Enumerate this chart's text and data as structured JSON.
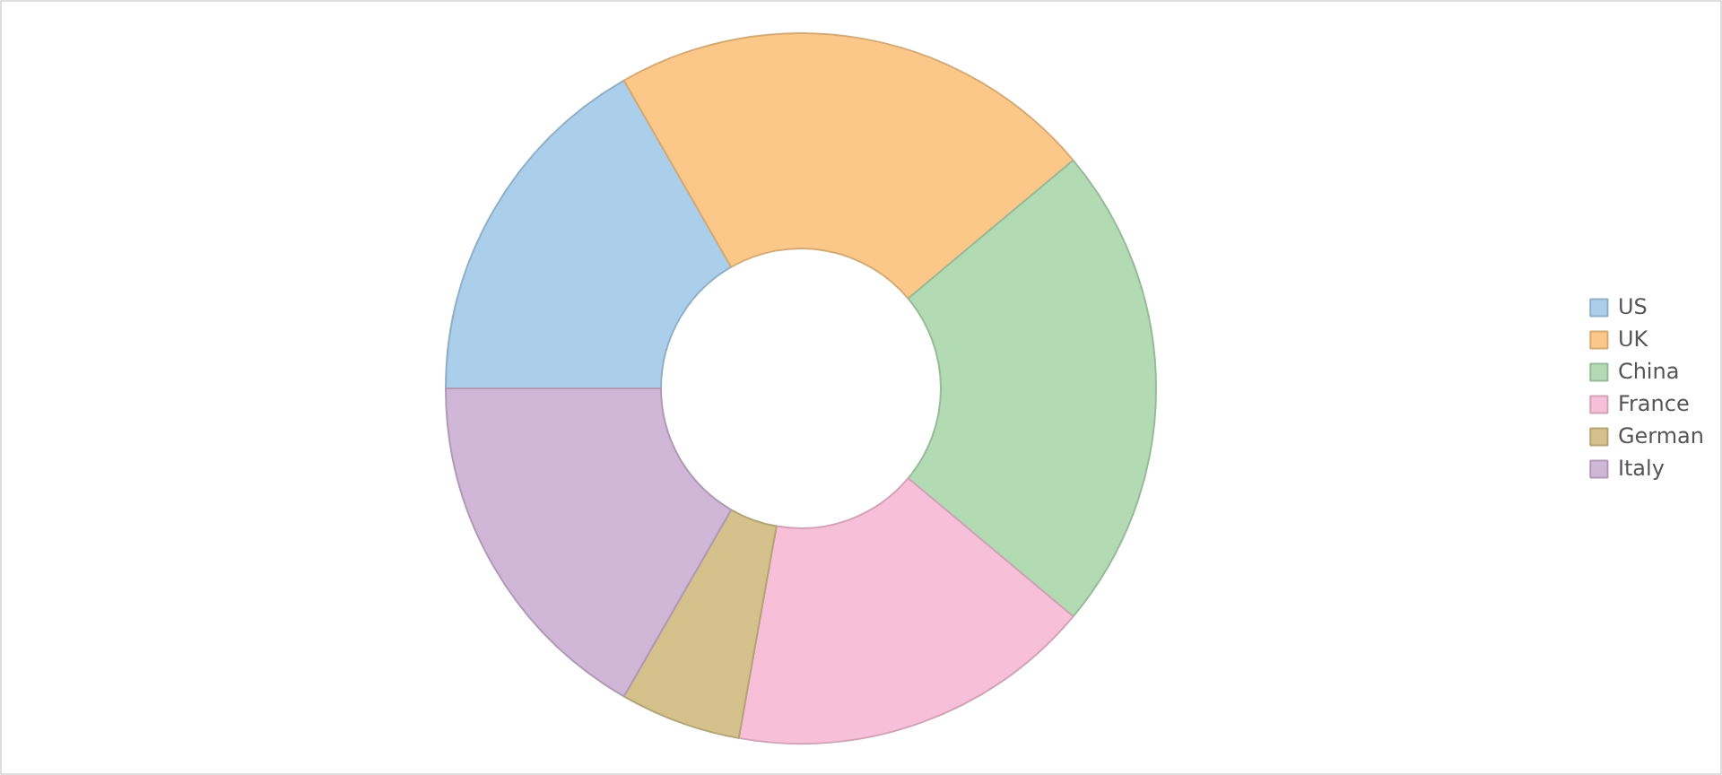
{
  "chart_data": {
    "type": "donut",
    "categories": [
      "US",
      "UK",
      "China",
      "France",
      "German",
      "Italy"
    ],
    "values": [
      16.7,
      22.2,
      22.2,
      16.7,
      5.5,
      16.7
    ],
    "colors": [
      "#abcfeb",
      "#fcc889",
      "#b2dbb4",
      "#f7c0d8",
      "#d4c18b",
      "#d0b6d7"
    ],
    "legend": "right"
  }
}
